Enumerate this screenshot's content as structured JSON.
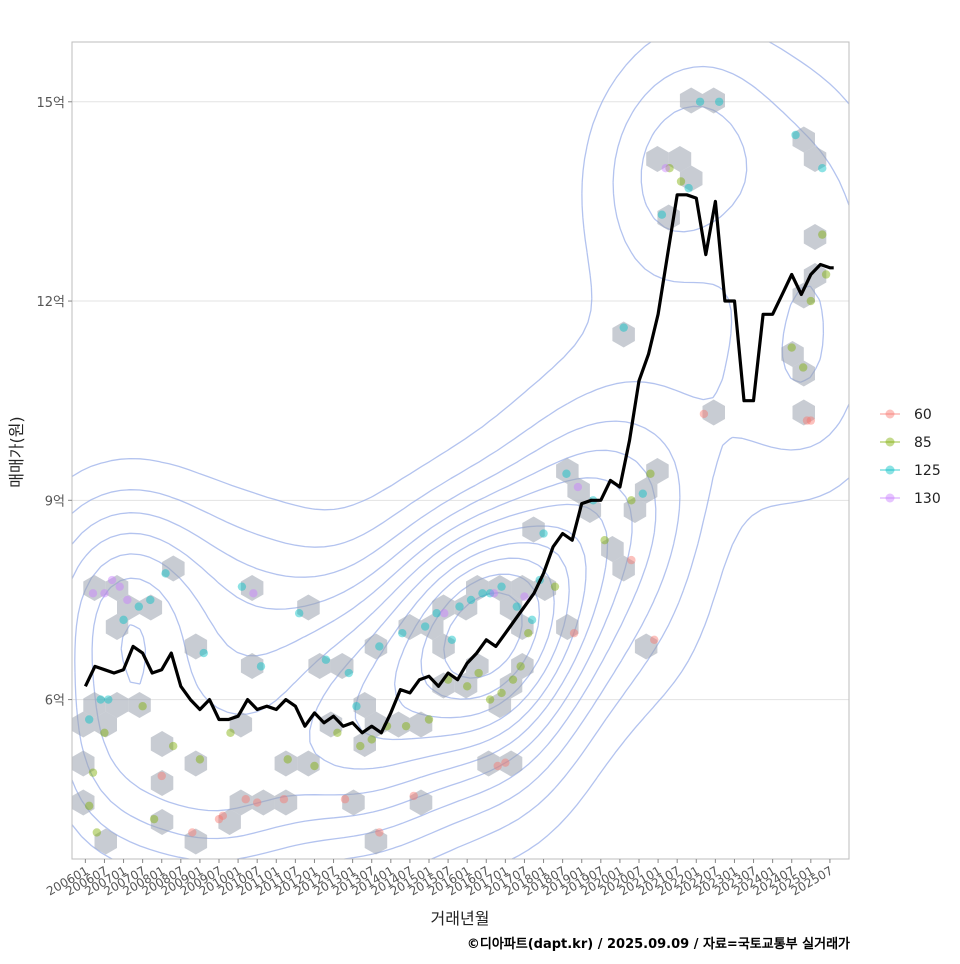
{
  "chart_data": {
    "type": "line",
    "title": "",
    "xlabel": "거래년월",
    "ylabel": "매매가(원)",
    "ylim": [
      3.6,
      15.9
    ],
    "grid": true,
    "legend": {
      "position": "right",
      "entries": [
        "60",
        "85",
        "125",
        "130"
      ]
    },
    "colors": {
      "60": "#F8766D",
      "85": "#7CAE00",
      "125": "#00BFC4",
      "130": "#C77CFF",
      "line": "#000000",
      "contour": "#9AAFEA",
      "hex": "#9AA3AE"
    },
    "x_ticks": [
      "200601",
      "200607",
      "200701",
      "200707",
      "200801",
      "200807",
      "200901",
      "200907",
      "201001",
      "201007",
      "201101",
      "201107",
      "201201",
      "201207",
      "201301",
      "201307",
      "201401",
      "201407",
      "201501",
      "201507",
      "201601",
      "201607",
      "201701",
      "201707",
      "201801",
      "201807",
      "201901",
      "201907",
      "202001",
      "202007",
      "202101",
      "202107",
      "202201",
      "202207",
      "202301",
      "202307",
      "202401",
      "202407",
      "202501",
      "202507"
    ],
    "y_ticks": [
      {
        "value": 6,
        "label": "6억"
      },
      {
        "value": 9,
        "label": "9억"
      },
      {
        "value": 12,
        "label": "12억"
      },
      {
        "value": 15,
        "label": "15억"
      }
    ],
    "series": [
      {
        "type": "line",
        "x": [
          2006.0,
          2006.25,
          2006.5,
          2006.75,
          2007.0,
          2007.25,
          2007.5,
          2007.75,
          2008.0,
          2008.25,
          2008.5,
          2008.75,
          2009.0,
          2009.25,
          2009.5,
          2009.75,
          2010.0,
          2010.25,
          2010.5,
          2010.75,
          2011.0,
          2011.25,
          2011.5,
          2011.75,
          2012.0,
          2012.25,
          2012.5,
          2012.75,
          2013.0,
          2013.25,
          2013.5,
          2013.75,
          2014.0,
          2014.25,
          2014.5,
          2014.75,
          2015.0,
          2015.25,
          2015.5,
          2015.75,
          2016.0,
          2016.25,
          2016.5,
          2016.75,
          2017.0,
          2017.25,
          2017.5,
          2017.75,
          2018.0,
          2018.25,
          2018.5,
          2018.75,
          2019.0,
          2019.25,
          2019.5,
          2019.75,
          2020.0,
          2020.25,
          2020.5,
          2020.75,
          2021.0,
          2021.25,
          2021.5,
          2021.75,
          2022.0,
          2022.25,
          2022.5,
          2022.75,
          2023.0,
          2023.25,
          2023.5,
          2023.75,
          2024.0,
          2024.25,
          2024.5,
          2024.75,
          2025.0,
          2025.25,
          2025.5,
          2025.6
        ],
        "values": [
          6.2,
          6.5,
          6.45,
          6.4,
          6.45,
          6.8,
          6.7,
          6.4,
          6.45,
          6.7,
          6.2,
          6.0,
          5.85,
          6.0,
          5.7,
          5.7,
          5.75,
          6.0,
          5.85,
          5.9,
          5.85,
          6.0,
          5.9,
          5.6,
          5.8,
          5.65,
          5.75,
          5.6,
          5.65,
          5.5,
          5.6,
          5.5,
          5.8,
          6.15,
          6.1,
          6.3,
          6.35,
          6.2,
          6.4,
          6.3,
          6.55,
          6.7,
          6.9,
          6.8,
          7.0,
          7.2,
          7.4,
          7.6,
          7.9,
          8.3,
          8.5,
          8.4,
          8.95,
          9.0,
          9.0,
          9.3,
          9.2,
          9.9,
          10.8,
          11.2,
          11.8,
          12.7,
          13.6,
          13.6,
          13.55,
          12.7,
          13.5,
          12.0,
          12.0,
          10.5,
          10.5,
          11.8,
          11.8,
          12.1,
          12.4,
          12.1,
          12.4,
          12.55,
          12.5,
          12.5
        ]
      },
      {
        "name": "60",
        "type": "scatter",
        "x": [
          2009.5,
          2009.6,
          2010.2,
          2010.5,
          2011.2,
          2012.8,
          2013.7,
          2014.6,
          2016.8,
          2017.0,
          2018.8,
          2020.3,
          2020.9,
          2022.2,
          2024.9,
          2025.0,
          2008.8,
          2008.0
        ],
        "values": [
          4.2,
          4.25,
          4.5,
          4.45,
          4.5,
          4.5,
          4.0,
          4.55,
          5.0,
          5.05,
          7.0,
          8.1,
          6.9,
          10.3,
          10.2,
          10.2,
          4.0,
          4.85
        ]
      },
      {
        "name": "85",
        "type": "scatter",
        "x": [
          2006.1,
          2006.3,
          2006.5,
          2007.5,
          2007.8,
          2008.3,
          2009.0,
          2009.8,
          2011.3,
          2012.0,
          2012.6,
          2013.5,
          2013.9,
          2014.4,
          2015.0,
          2015.5,
          2016.0,
          2016.3,
          2016.6,
          2017.2,
          2017.6,
          2018.3,
          2019.6,
          2020.3,
          2020.8,
          2021.3,
          2021.6,
          2024.5,
          2024.8,
          2025.0,
          2025.3,
          2025.4,
          2013.2,
          2016.9,
          2017.4,
          2006.2
        ],
        "values": [
          4.4,
          4.0,
          5.5,
          5.9,
          4.2,
          5.3,
          5.1,
          5.5,
          5.1,
          5.0,
          5.5,
          5.4,
          5.6,
          5.6,
          5.7,
          6.3,
          6.2,
          6.4,
          6.0,
          6.3,
          7.0,
          7.7,
          8.4,
          9.0,
          9.4,
          14.0,
          13.8,
          11.3,
          11.0,
          12.0,
          13.0,
          12.4,
          5.3,
          6.1,
          6.5,
          4.9
        ]
      },
      {
        "name": "125",
        "type": "scatter",
        "x": [
          2006.1,
          2006.4,
          2007.0,
          2007.4,
          2008.1,
          2009.1,
          2010.1,
          2010.6,
          2011.6,
          2012.3,
          2012.9,
          2013.7,
          2014.3,
          2014.9,
          2015.2,
          2015.8,
          2016.1,
          2016.6,
          2016.9,
          2017.3,
          2017.7,
          2018.0,
          2018.6,
          2019.3,
          2020.1,
          2020.6,
          2021.1,
          2021.8,
          2022.1,
          2022.6,
          2024.6,
          2025.3,
          2006.6,
          2007.7,
          2013.1,
          2015.6,
          2016.4,
          2017.9
        ],
        "values": [
          5.7,
          6.0,
          7.2,
          7.4,
          7.9,
          6.7,
          7.7,
          6.5,
          7.3,
          6.6,
          6.4,
          6.8,
          7.0,
          7.1,
          7.3,
          7.4,
          7.5,
          7.6,
          7.7,
          7.4,
          7.2,
          8.5,
          9.4,
          9.0,
          11.6,
          9.1,
          13.3,
          13.7,
          15.0,
          15.0,
          14.5,
          14.0,
          6.0,
          7.5,
          5.9,
          6.9,
          7.6,
          7.8
        ]
      },
      {
        "name": "130",
        "type": "scatter",
        "x": [
          2006.2,
          2006.5,
          2006.7,
          2007.1,
          2010.4,
          2015.4,
          2016.7,
          2018.9,
          2021.2,
          2006.9,
          2017.5
        ],
        "values": [
          7.6,
          7.6,
          7.8,
          7.5,
          7.6,
          7.3,
          7.6,
          9.2,
          14.0,
          7.7,
          7.55
        ]
      }
    ]
  },
  "caption": "©디아파트(dapt.kr) / 2025.09.09 / 자료=국토교통부 실거래가"
}
